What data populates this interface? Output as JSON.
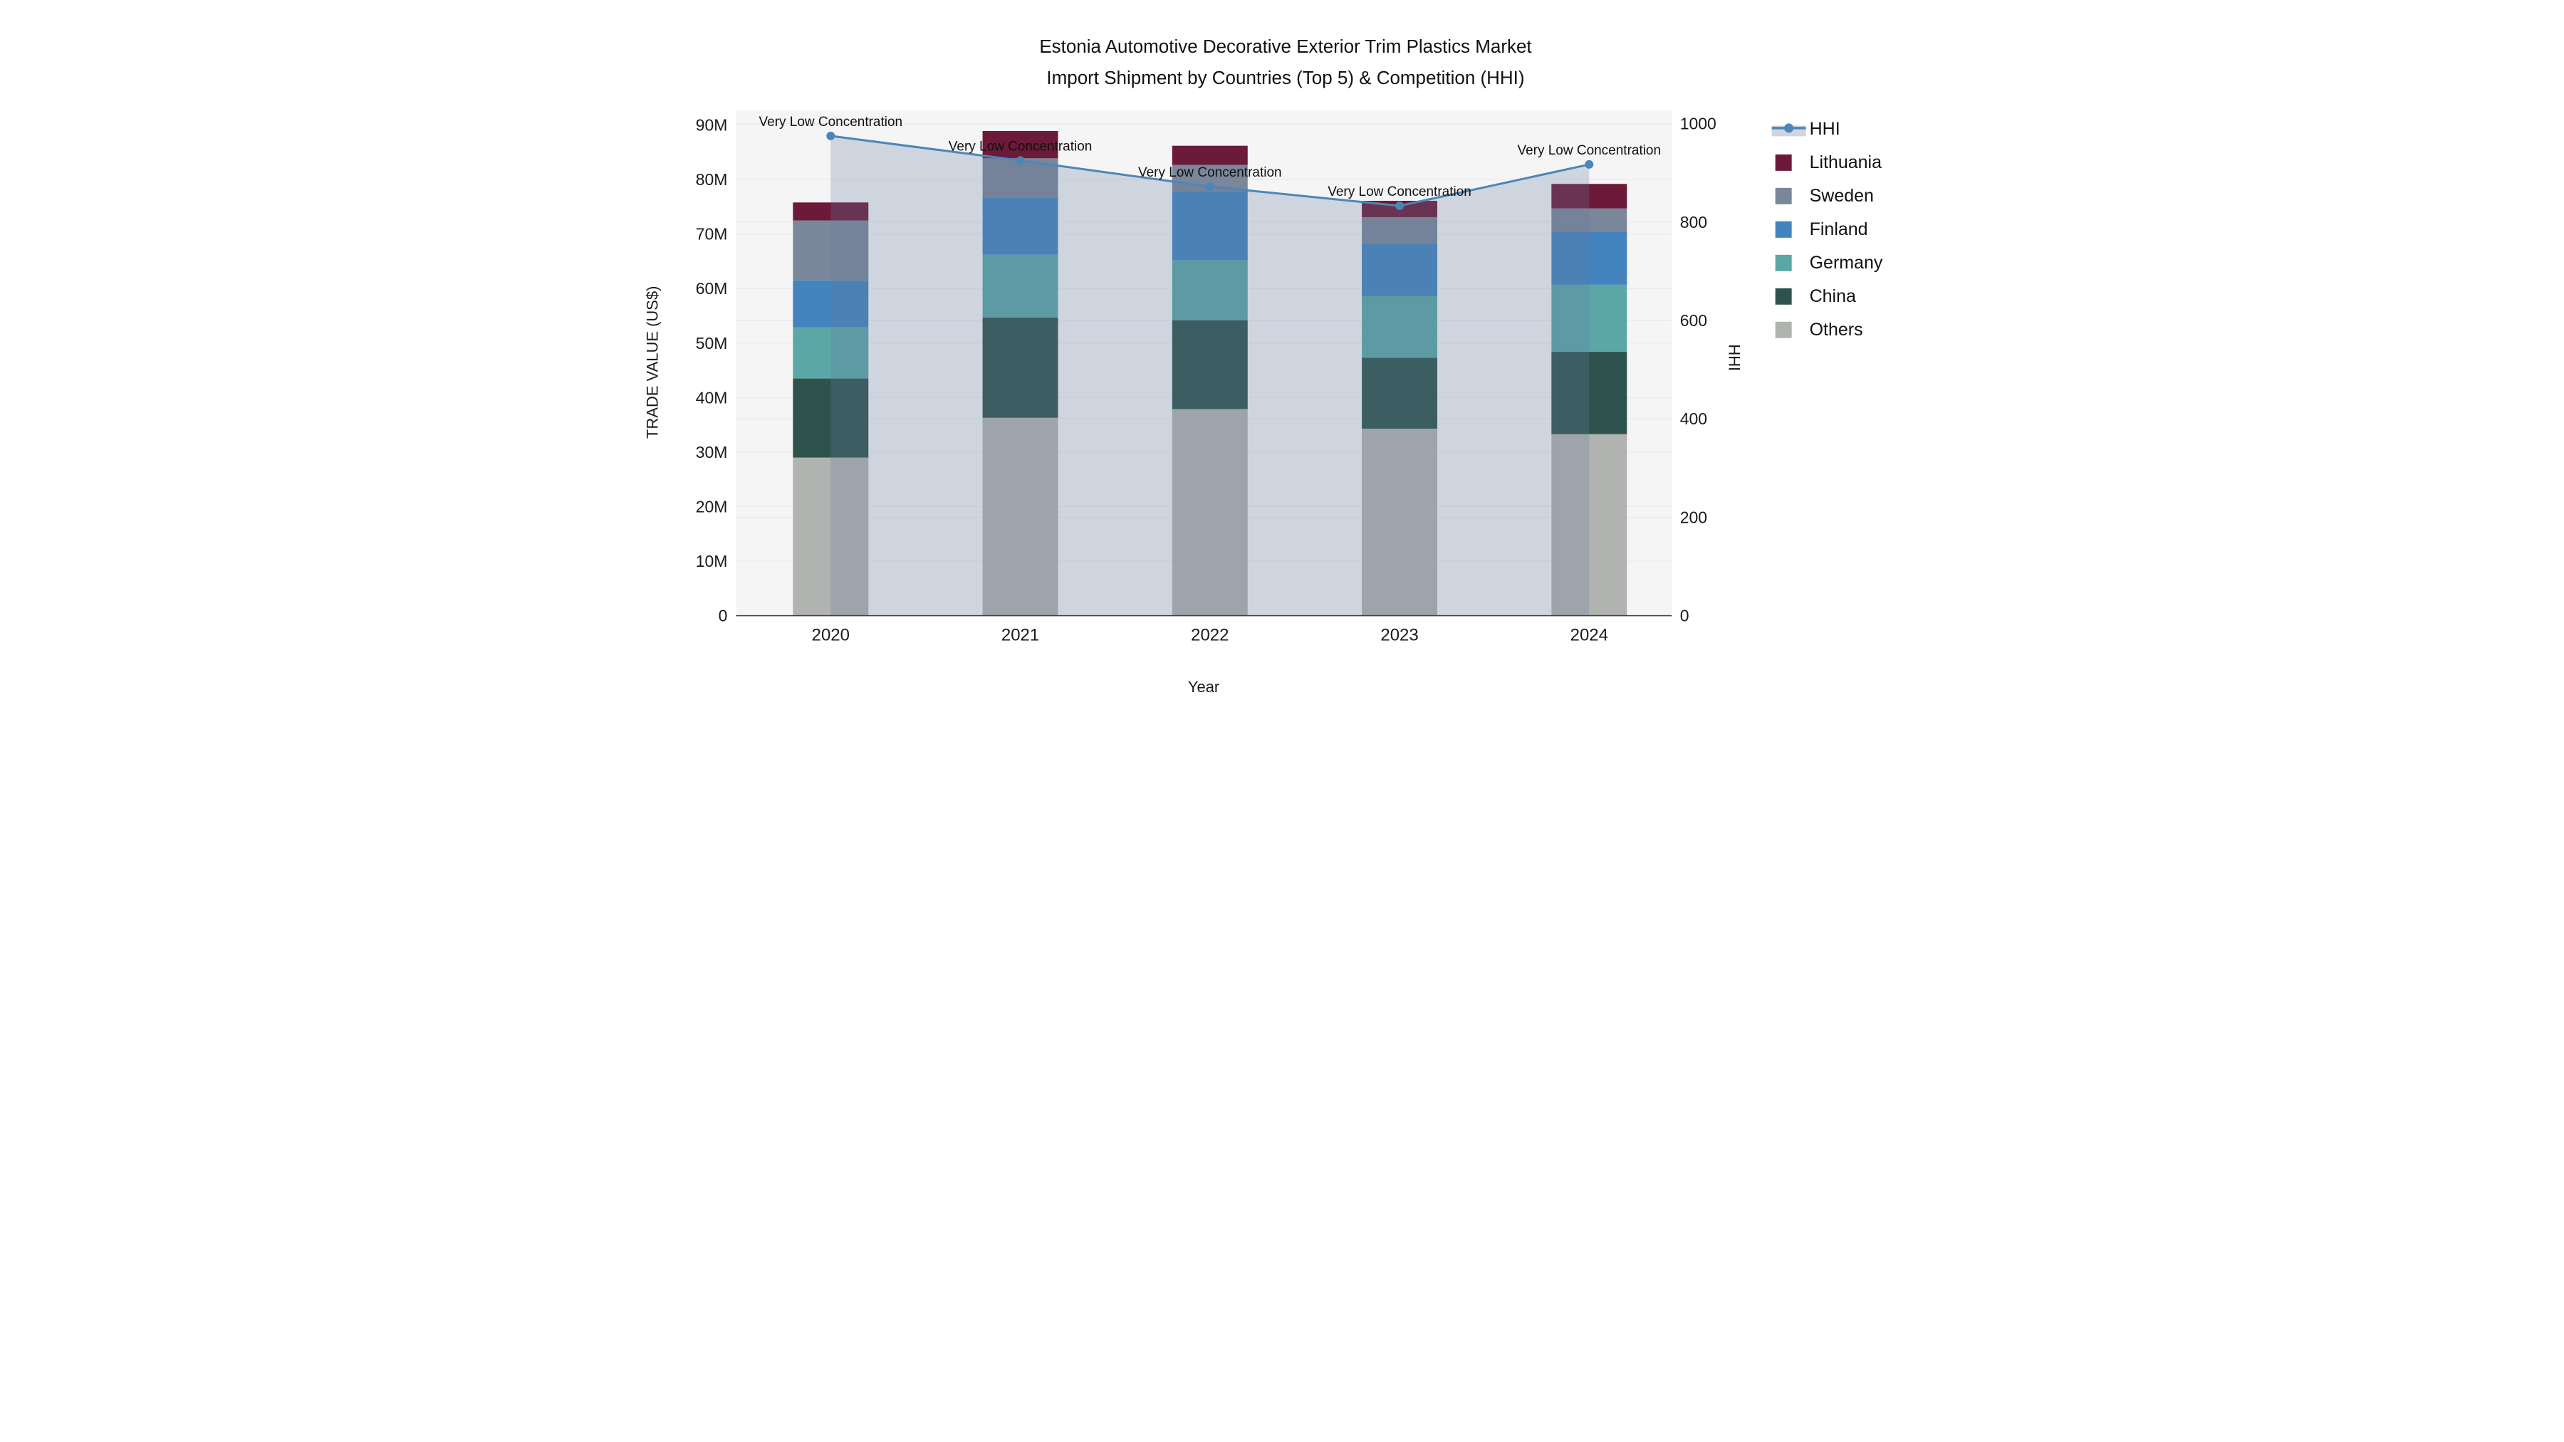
{
  "title": {
    "line1": "Estonia Automotive Decorative Exterior Trim Plastics Market",
    "line2": "Import Shipment by Countries (Top 5) & Competition (HHI)"
  },
  "axes": {
    "y_left": {
      "title": "TRADE VALUE (US$)",
      "tick_labels": [
        "0",
        "10M",
        "20M",
        "30M",
        "40M",
        "50M",
        "60M",
        "70M",
        "80M",
        "90M"
      ],
      "tick_values": [
        0,
        10,
        20,
        30,
        40,
        50,
        60,
        70,
        80,
        90
      ],
      "range": [
        0,
        92.7
      ]
    },
    "y_right": {
      "title": "HHI",
      "tick_labels": [
        "0",
        "200",
        "400",
        "600",
        "800",
        "1000"
      ],
      "tick_values": [
        0,
        200,
        400,
        600,
        800,
        1000
      ],
      "range": [
        0,
        1027
      ]
    },
    "x": {
      "title": "Year",
      "categories": [
        "2020",
        "2021",
        "2022",
        "2023",
        "2024"
      ]
    }
  },
  "chart_data": {
    "type": "bar",
    "subtype": "stacked-bars-with-line-overlay",
    "categories": [
      "2020",
      "2021",
      "2022",
      "2023",
      "2024"
    ],
    "unit": "million US$",
    "series": [
      {
        "name": "Others",
        "color": "#B1B3B0",
        "values": [
          29.0,
          36.3,
          37.9,
          34.3,
          33.3
        ]
      },
      {
        "name": "China",
        "color": "#2E534E",
        "values": [
          14.5,
          18.4,
          16.3,
          13.0,
          15.1
        ]
      },
      {
        "name": "Germany",
        "color": "#5AA7A5",
        "values": [
          9.4,
          11.5,
          11.0,
          11.3,
          12.3
        ]
      },
      {
        "name": "Finland",
        "color": "#4484BE",
        "values": [
          8.6,
          10.5,
          12.7,
          9.6,
          9.8
        ]
      },
      {
        "name": "Sweden",
        "color": "#7A8699",
        "values": [
          11.0,
          7.2,
          4.8,
          4.9,
          4.2
        ]
      },
      {
        "name": "Lithuania",
        "color": "#6B1A39",
        "values": [
          3.3,
          5.0,
          3.5,
          3.0,
          4.5
        ]
      }
    ],
    "line_series": {
      "name": "HHI",
      "color": "#4C86B8",
      "area_fill": "rgba(100,122,158,0.26)",
      "values": [
        975,
        925,
        872,
        833,
        917
      ]
    },
    "annotations": [
      {
        "x": "2020",
        "text": "Very Low Concentration"
      },
      {
        "x": "2021",
        "text": "Very Low Concentration"
      },
      {
        "x": "2022",
        "text": "Very Low Concentration"
      },
      {
        "x": "2023",
        "text": "Very Low Concentration"
      },
      {
        "x": "2024",
        "text": "Very Low Concentration"
      }
    ],
    "legend_order": [
      "HHI",
      "Lithuania",
      "Sweden",
      "Finland",
      "Germany",
      "China",
      "Others"
    ],
    "layout_hints": {
      "grid": true,
      "legend_position": "right",
      "panel_bg": "#F5F5F5",
      "grid_color": "#E8E8E8",
      "axis_line_color": "#3F3F3F"
    }
  }
}
